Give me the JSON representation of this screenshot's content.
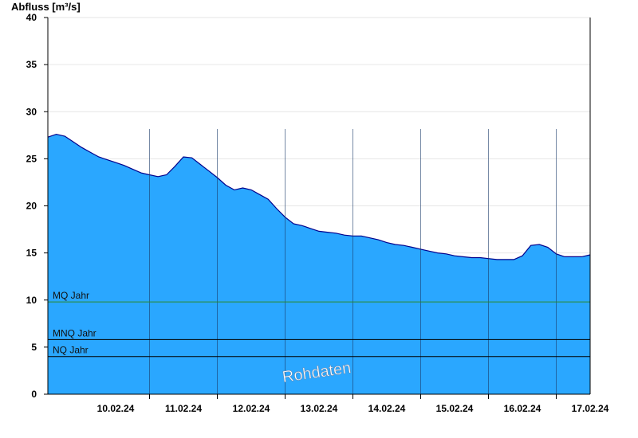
{
  "chart_data": {
    "type": "area",
    "ylabel": "Abfluss [m³/s]",
    "xlabel": "",
    "ylim": [
      0,
      40
    ],
    "yticks": [
      "0",
      "5",
      "10",
      "15",
      "20",
      "25",
      "30",
      "35",
      "40"
    ],
    "x_range": [
      "2024-02-09T12:00",
      "2024-02-17T12:00"
    ],
    "xtick_labels": [
      "10.02.24",
      "11.02.24",
      "12.02.24",
      "13.02.24",
      "14.02.24",
      "15.02.24",
      "16.02.24",
      "17.02.24"
    ],
    "grid": true,
    "series": [
      {
        "x": [
          "2024-02-09T12:00",
          "2024-02-09T15:00",
          "2024-02-09T18:00",
          "2024-02-09T21:00",
          "2024-02-10T00:00",
          "2024-02-10T03:00",
          "2024-02-10T06:00",
          "2024-02-10T09:00",
          "2024-02-10T12:00",
          "2024-02-10T15:00",
          "2024-02-10T18:00",
          "2024-02-10T21:00",
          "2024-02-11T00:00",
          "2024-02-11T03:00",
          "2024-02-11T06:00",
          "2024-02-11T09:00",
          "2024-02-11T12:00",
          "2024-02-11T15:00",
          "2024-02-11T18:00",
          "2024-02-11T21:00",
          "2024-02-12T00:00",
          "2024-02-12T03:00",
          "2024-02-12T06:00",
          "2024-02-12T09:00",
          "2024-02-12T12:00",
          "2024-02-12T15:00",
          "2024-02-12T18:00",
          "2024-02-12T21:00",
          "2024-02-13T00:00",
          "2024-02-13T03:00",
          "2024-02-13T06:00",
          "2024-02-13T09:00",
          "2024-02-13T12:00",
          "2024-02-13T15:00",
          "2024-02-13T18:00",
          "2024-02-13T21:00",
          "2024-02-14T00:00",
          "2024-02-14T03:00",
          "2024-02-14T06:00",
          "2024-02-14T09:00",
          "2024-02-14T12:00",
          "2024-02-14T15:00",
          "2024-02-14T18:00",
          "2024-02-14T21:00",
          "2024-02-15T00:00",
          "2024-02-15T03:00",
          "2024-02-15T06:00",
          "2024-02-15T09:00",
          "2024-02-15T12:00",
          "2024-02-15T15:00",
          "2024-02-15T18:00",
          "2024-02-15T21:00",
          "2024-02-16T00:00",
          "2024-02-16T03:00",
          "2024-02-16T06:00",
          "2024-02-16T09:00",
          "2024-02-16T12:00",
          "2024-02-16T15:00",
          "2024-02-16T18:00",
          "2024-02-16T21:00",
          "2024-02-17T00:00",
          "2024-02-17T03:00",
          "2024-02-17T06:00",
          "2024-02-17T09:00",
          "2024-02-17T12:00"
        ],
        "y": [
          27.3,
          27.6,
          27.4,
          26.8,
          26.2,
          25.7,
          25.2,
          24.9,
          24.6,
          24.3,
          23.9,
          23.5,
          23.3,
          23.1,
          23.3,
          24.2,
          25.2,
          25.1,
          24.4,
          23.7,
          23.0,
          22.2,
          21.7,
          21.9,
          21.7,
          21.2,
          20.7,
          19.7,
          18.8,
          18.1,
          17.9,
          17.6,
          17.3,
          17.2,
          17.1,
          16.9,
          16.8,
          16.8,
          16.6,
          16.4,
          16.1,
          15.9,
          15.8,
          15.6,
          15.4,
          15.2,
          15.0,
          14.9,
          14.7,
          14.6,
          14.5,
          14.5,
          14.4,
          14.3,
          14.3,
          14.3,
          14.7,
          15.8,
          15.9,
          15.6,
          14.9,
          14.6,
          14.6,
          14.6,
          14.8
        ]
      }
    ],
    "reference_lines": [
      {
        "label": "MQ Jahr",
        "value": 9.8
      },
      {
        "label": "MNQ Jahr",
        "value": 5.8
      },
      {
        "label": "NQ Jahr",
        "value": 4.0
      }
    ],
    "watermark": "Rohdaten",
    "colors": {
      "area_fill": "#2aa7ff",
      "area_line": "#00008b",
      "mq_line": "#2a8a2a",
      "ref_line": "#000000",
      "grid": "#e6e6e6"
    }
  }
}
